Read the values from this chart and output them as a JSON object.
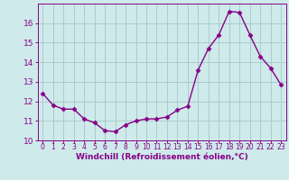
{
  "x": [
    0,
    1,
    2,
    3,
    4,
    5,
    6,
    7,
    8,
    9,
    10,
    11,
    12,
    13,
    14,
    15,
    16,
    17,
    18,
    19,
    20,
    21,
    22,
    23
  ],
  "y": [
    12.4,
    11.8,
    11.6,
    11.6,
    11.1,
    10.9,
    10.5,
    10.45,
    10.8,
    11.0,
    11.1,
    11.1,
    11.2,
    11.55,
    11.75,
    13.6,
    14.7,
    15.4,
    16.6,
    16.55,
    15.4,
    14.3,
    13.7,
    12.85
  ],
  "line_color": "#880088",
  "marker": "D",
  "marker_size": 2.5,
  "linewidth": 1.0,
  "xlabel": "Windchill (Refroidissement éolien,°C)",
  "ylabel": "",
  "xlim": [
    -0.5,
    23.5
  ],
  "ylim": [
    10,
    17
  ],
  "yticks": [
    10,
    11,
    12,
    13,
    14,
    15,
    16
  ],
  "xtick_labels": [
    "0",
    "1",
    "2",
    "3",
    "4",
    "5",
    "6",
    "7",
    "8",
    "9",
    "10",
    "11",
    "12",
    "13",
    "14",
    "15",
    "16",
    "17",
    "18",
    "19",
    "20",
    "21",
    "22",
    "23"
  ],
  "background_color": "#ceeaea",
  "grid_color": "#aacccc",
  "tick_color": "#880088",
  "label_color": "#880088",
  "xlabel_fontsize": 6.5,
  "ytick_fontsize": 6.5,
  "xtick_fontsize": 5.5
}
